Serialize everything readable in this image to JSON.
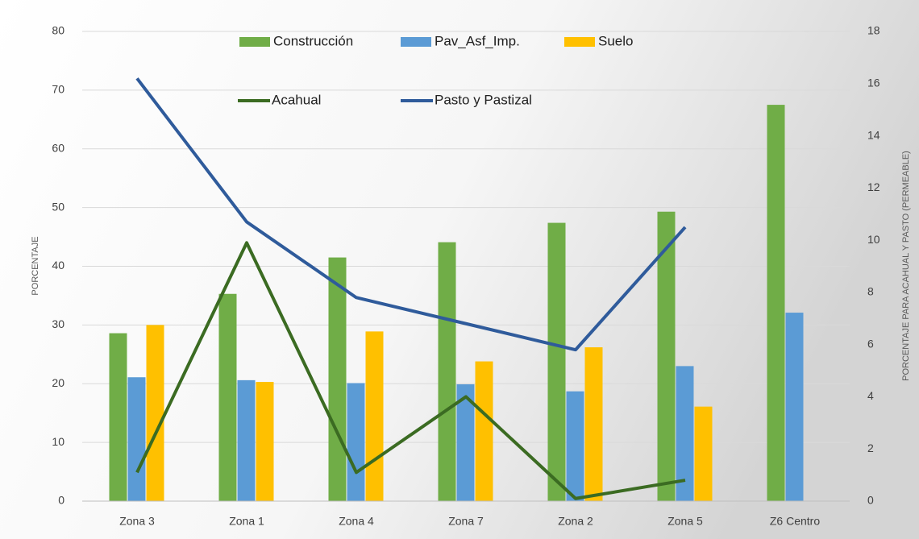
{
  "chart_data": {
    "type": "bar",
    "categories": [
      "Zona 3",
      "Zona 1",
      "Zona 4",
      "Zona 7",
      "Zona 2",
      "Zona 5",
      "Z6 Centro"
    ],
    "series": [
      {
        "name": "Construcción",
        "color": "#70ad47",
        "values": [
          28.6,
          35.3,
          41.5,
          44.1,
          47.4,
          49.3,
          67.5
        ]
      },
      {
        "name": "Pav_Asf_Imp.",
        "color": "#5b9bd5",
        "values": [
          21.1,
          20.6,
          20.1,
          19.9,
          18.7,
          23.0,
          32.1
        ]
      },
      {
        "name": "Suelo",
        "color": "#ffc000",
        "values": [
          30.0,
          20.3,
          28.9,
          23.8,
          26.2,
          16.1,
          null
        ]
      },
      {
        "name": "Acahual",
        "color": "#3b6b22",
        "type": "line",
        "axis": "y2",
        "values": [
          1.1,
          9.9,
          1.1,
          4.0,
          0.1,
          0.8,
          null
        ]
      },
      {
        "name": "Pasto y Pastizal",
        "color": "#2f5b9b",
        "type": "line",
        "axis": "y2",
        "values": [
          16.2,
          10.7,
          7.8,
          6.8,
          5.8,
          10.5,
          null
        ]
      }
    ],
    "ylabel": "PORCENTAJE",
    "y2label": "PORCENTAJE PARA ACAHUAL Y PASTO (PERMEABLE)",
    "ylim": [
      0,
      80
    ],
    "yticks": [
      0,
      10,
      20,
      30,
      40,
      50,
      60,
      70,
      80
    ],
    "y2lim": [
      0,
      18
    ],
    "y2ticks": [
      0,
      2,
      4,
      6,
      8,
      10,
      12,
      14,
      16,
      18
    ],
    "grid": true,
    "legend": "top"
  }
}
